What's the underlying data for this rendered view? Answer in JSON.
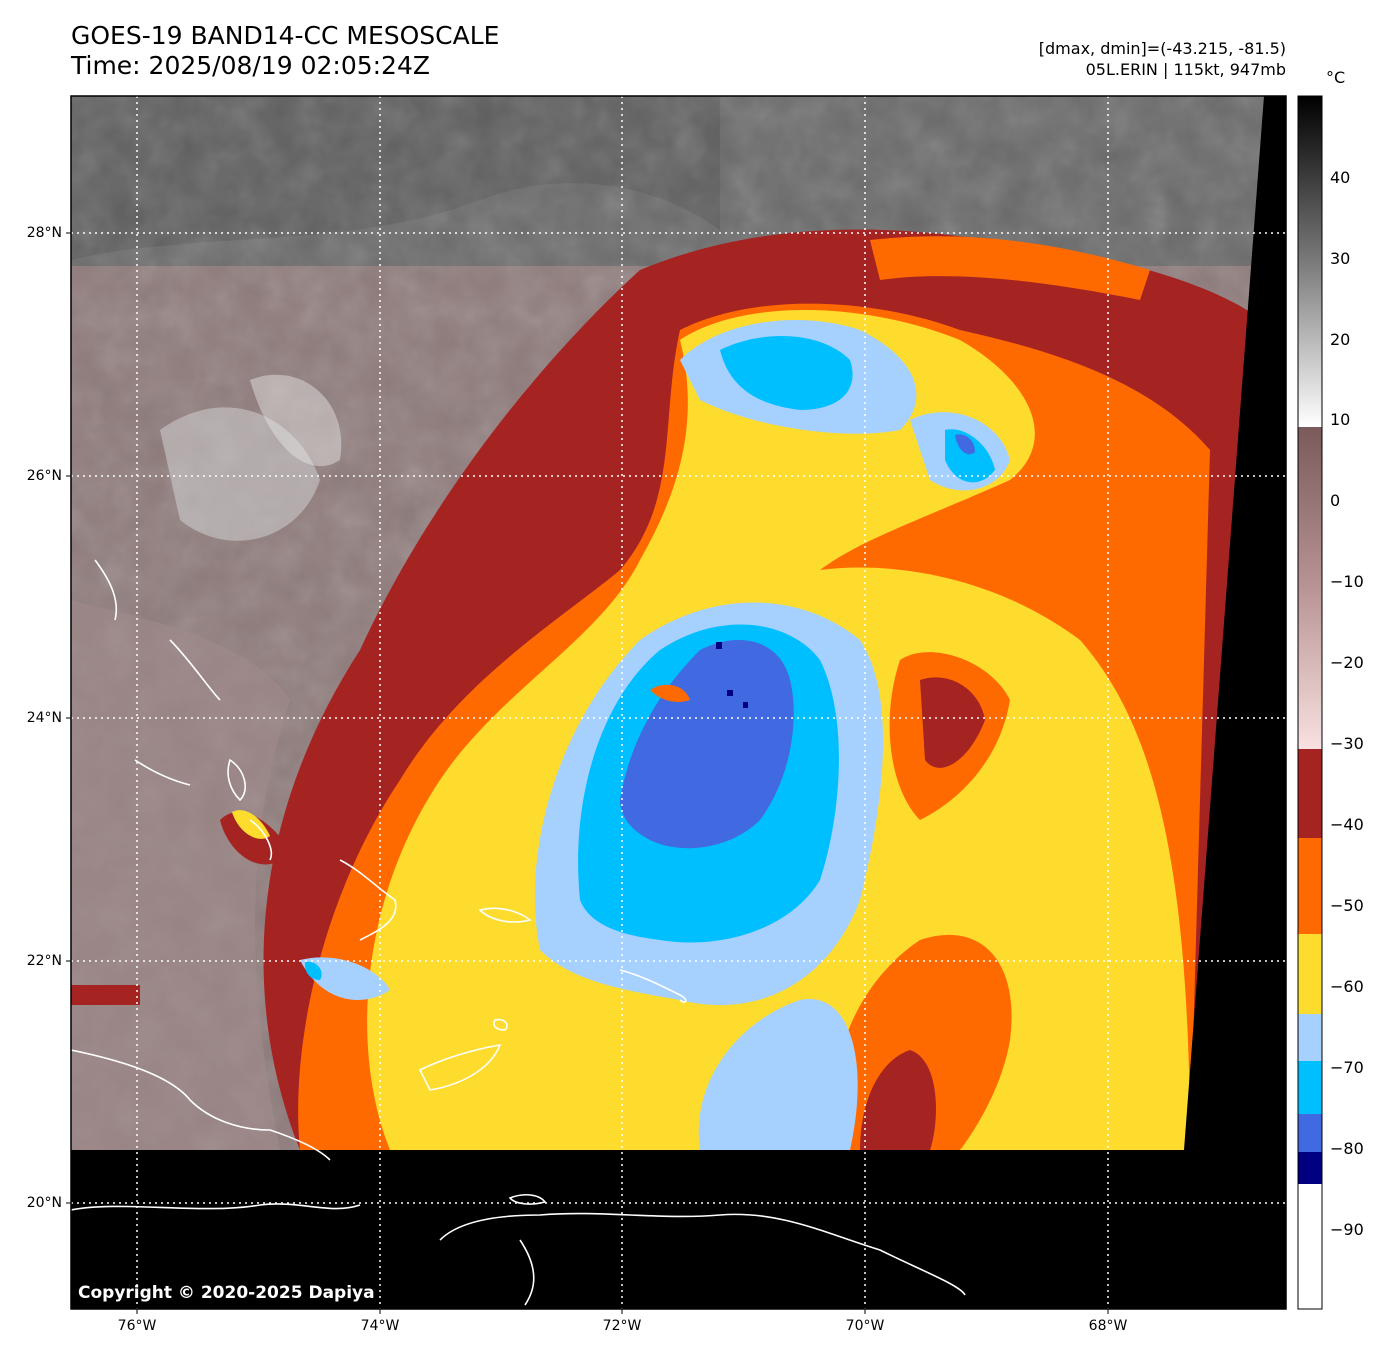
{
  "title": {
    "line1": "GOES-19 BAND14-CC MESOSCALE",
    "line2": "Time: 2025/08/19 02:05:24Z"
  },
  "meta": {
    "range": "[dmax, dmin]=(-43.215, -81.5)",
    "storm": "05L.ERIN | 115kt, 947mb"
  },
  "copyright": "Copyright © 2020-2025 Dapiya",
  "axes": {
    "lat_labels": [
      "28°N",
      "26°N",
      "24°N",
      "22°N",
      "20°N"
    ],
    "lon_labels": [
      "76°W",
      "74°W",
      "72°W",
      "70°W",
      "68°W"
    ]
  },
  "colorbar": {
    "unit": "°C",
    "ticks": [
      "40",
      "30",
      "20",
      "10",
      "0",
      "−10",
      "−20",
      "−30",
      "−40",
      "−50",
      "−60",
      "−70",
      "−80",
      "−90"
    ],
    "colors": {
      "ext_cold": "#000080",
      "blue": "#4169e1",
      "cyan": "#00bfff",
      "light_blue": "#a6d1ff",
      "yellow": "#fddc2e",
      "orange": "#ff6a00",
      "dark_red": "#a52422",
      "pink": "#f5d9d9",
      "mauve": "#8a6a6a",
      "white": "#ffffff",
      "black": "#000000"
    }
  },
  "storm_center": {
    "lat": 24.1,
    "lon": -71.0
  }
}
